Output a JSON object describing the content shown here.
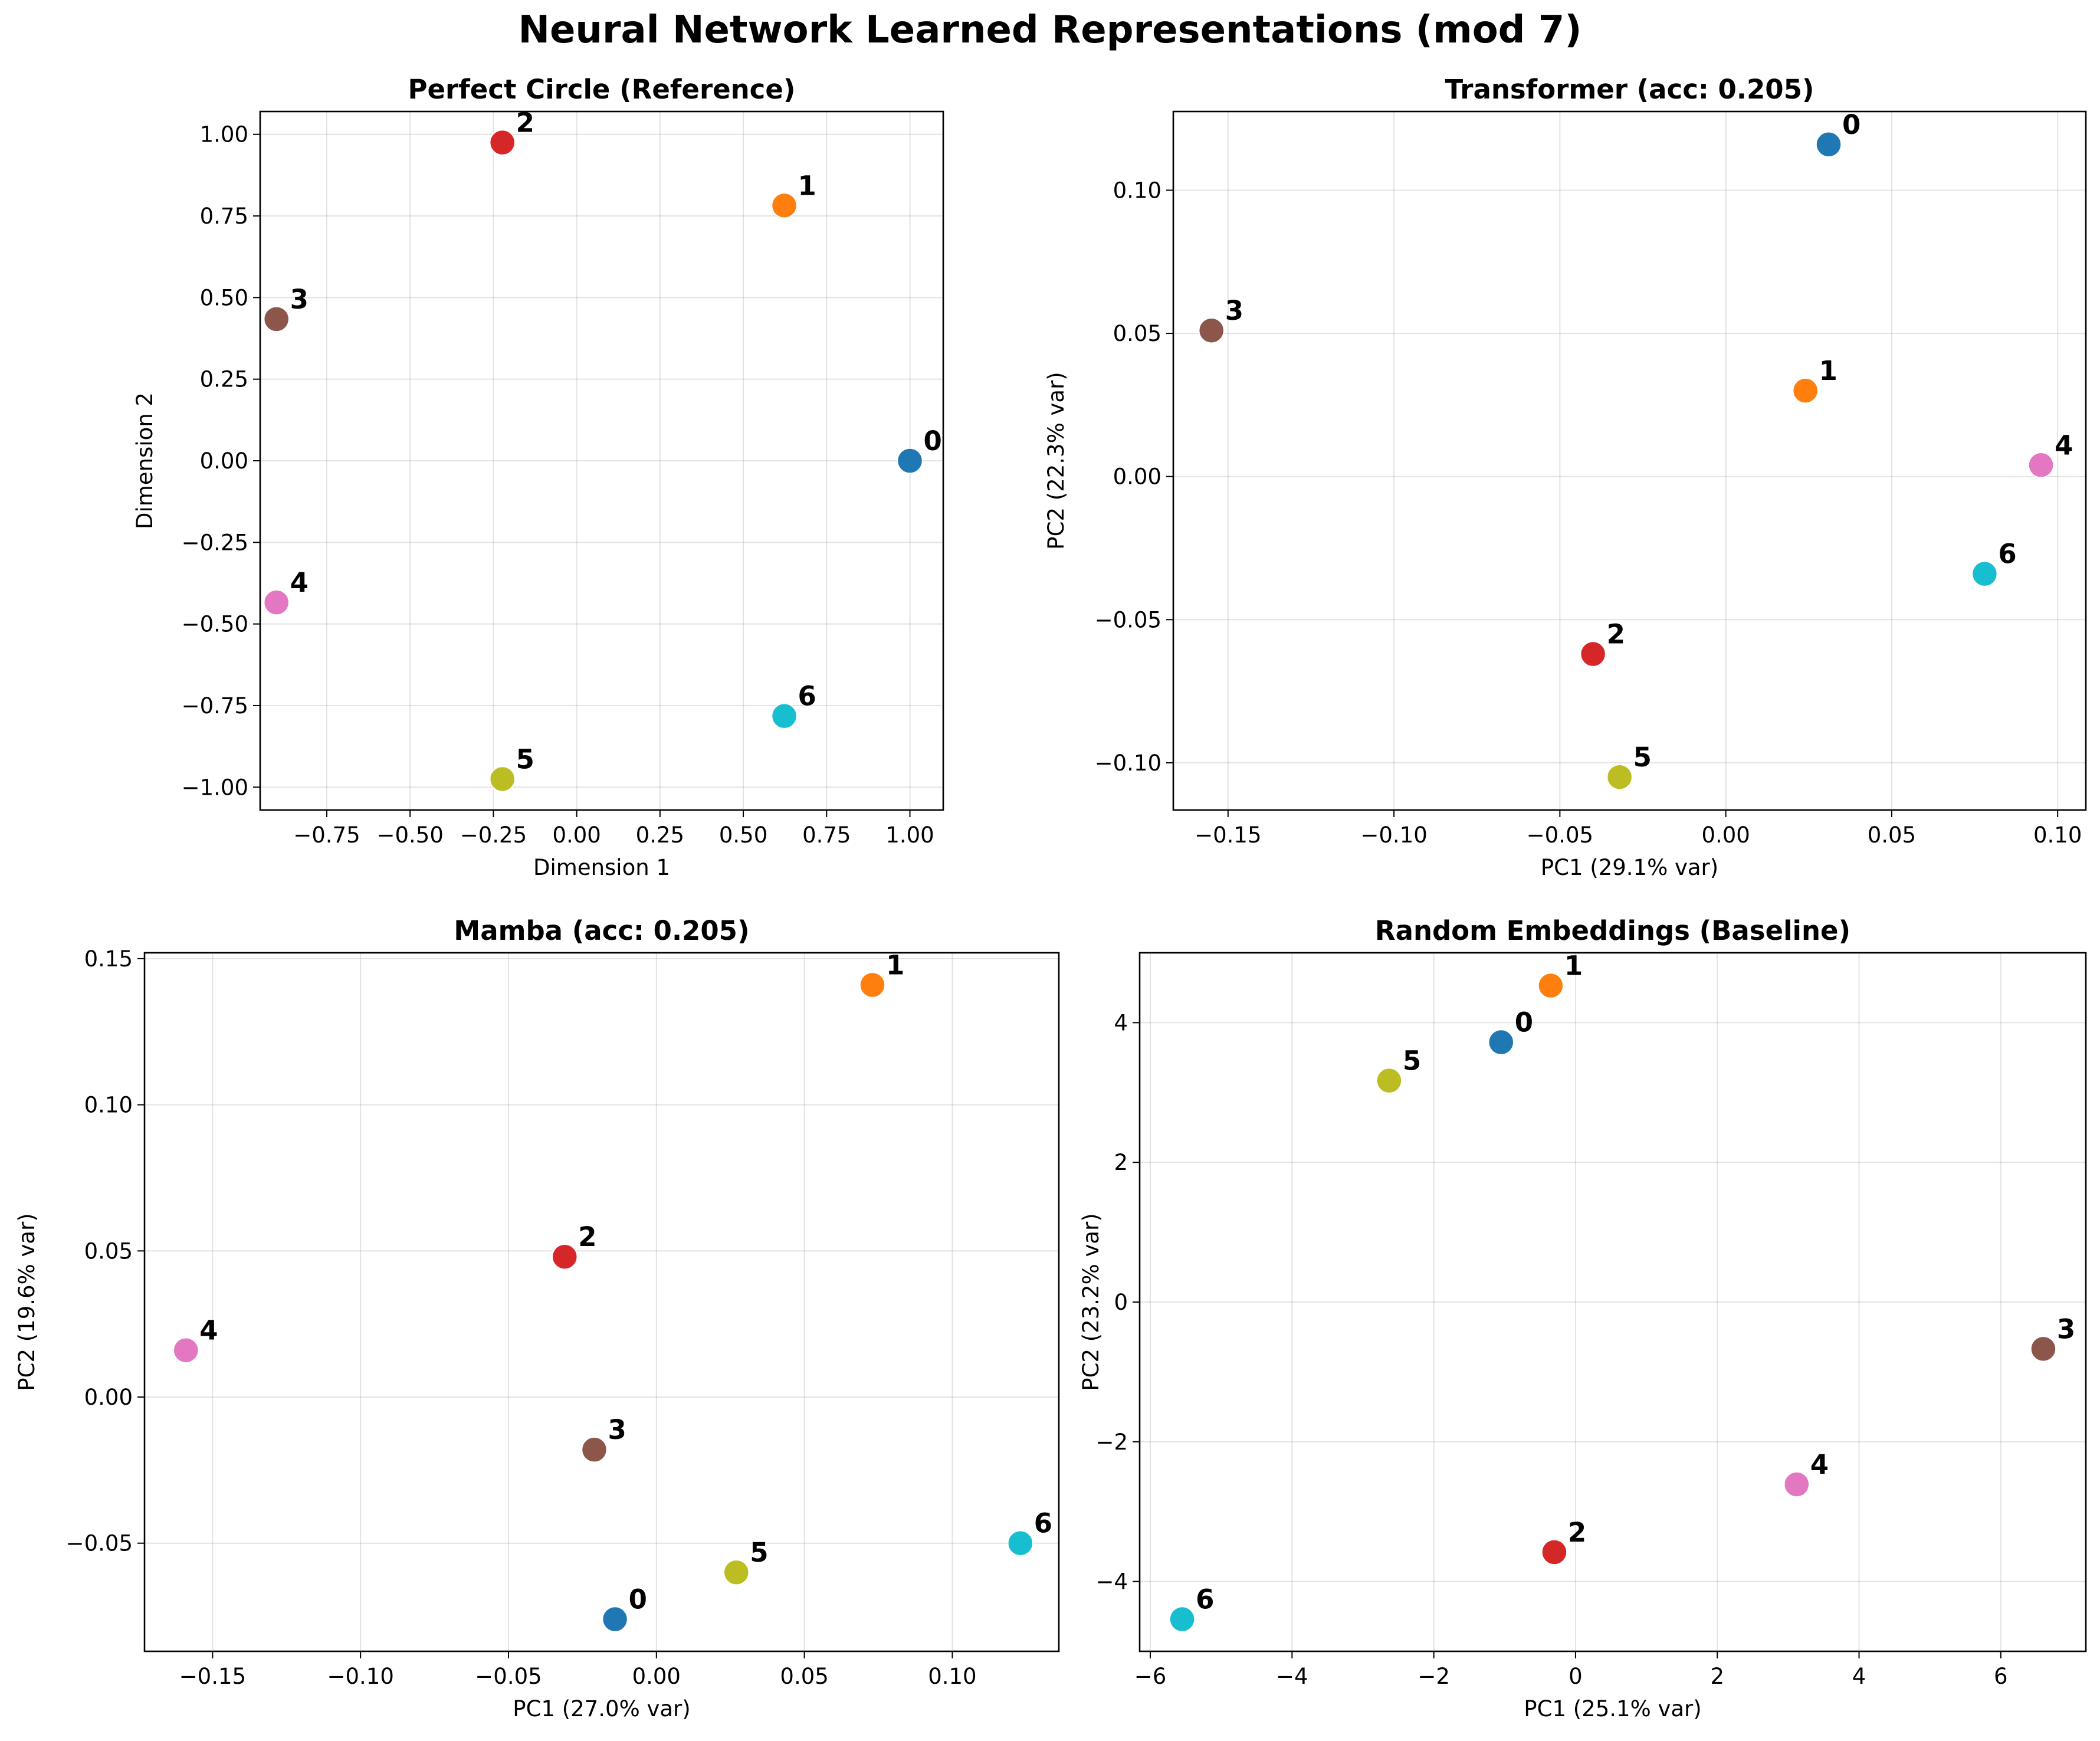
{
  "figure_title": "Neural Network Learned Representations (mod 7)",
  "colors": {
    "0": "#1f77b4",
    "1": "#ff7f0e",
    "2": "#d62728",
    "3": "#8c564b",
    "4": "#e377c2",
    "5": "#bcbd22",
    "6": "#17becf"
  },
  "chart_data": [
    {
      "type": "scatter",
      "title": "Perfect Circle (Reference)",
      "xlabel": "Dimension 1",
      "ylabel": "Dimension 2",
      "xlim": [
        -0.95,
        1.1
      ],
      "ylim": [
        -1.07,
        1.07
      ],
      "xticks": [
        -0.75,
        -0.5,
        -0.25,
        0.0,
        0.25,
        0.5,
        0.75,
        1.0
      ],
      "xtick_labels": [
        "−0.75",
        "−0.50",
        "−0.25",
        "0.00",
        "0.25",
        "0.50",
        "0.75",
        "1.00"
      ],
      "yticks": [
        -1.0,
        -0.75,
        -0.5,
        -0.25,
        0.0,
        0.25,
        0.5,
        0.75,
        1.0
      ],
      "ytick_labels": [
        "−1.00",
        "−0.75",
        "−0.50",
        "−0.25",
        "0.00",
        "0.25",
        "0.50",
        "0.75",
        "1.00"
      ],
      "grid": true,
      "points": [
        {
          "label": "0",
          "x": 1.0,
          "y": 0.0
        },
        {
          "label": "1",
          "x": 0.623,
          "y": 0.782
        },
        {
          "label": "2",
          "x": -0.223,
          "y": 0.975
        },
        {
          "label": "3",
          "x": -0.901,
          "y": 0.434
        },
        {
          "label": "4",
          "x": -0.901,
          "y": -0.434
        },
        {
          "label": "5",
          "x": -0.223,
          "y": -0.975
        },
        {
          "label": "6",
          "x": 0.623,
          "y": -0.782
        }
      ]
    },
    {
      "type": "scatter",
      "title": "Transformer (acc: 0.205)",
      "xlabel": "PC1 (29.1% var)",
      "ylabel": "PC2 (22.3% var)",
      "xlim": [
        -0.1665,
        0.1085
      ],
      "ylim": [
        -0.1165,
        0.1275
      ],
      "xticks": [
        -0.15,
        -0.1,
        -0.05,
        0.0,
        0.05,
        0.1
      ],
      "xtick_labels": [
        "−0.15",
        "−0.10",
        "−0.05",
        "0.00",
        "0.05",
        "0.10"
      ],
      "yticks": [
        -0.1,
        -0.05,
        0.0,
        0.05,
        0.1
      ],
      "ytick_labels": [
        "−0.10",
        "−0.05",
        "0.00",
        "0.05",
        "0.10"
      ],
      "grid": true,
      "points": [
        {
          "label": "0",
          "x": 0.031,
          "y": 0.116
        },
        {
          "label": "1",
          "x": 0.024,
          "y": 0.03
        },
        {
          "label": "2",
          "x": -0.04,
          "y": -0.062
        },
        {
          "label": "3",
          "x": -0.155,
          "y": 0.051
        },
        {
          "label": "4",
          "x": 0.095,
          "y": 0.004
        },
        {
          "label": "5",
          "x": -0.032,
          "y": -0.105
        },
        {
          "label": "6",
          "x": 0.078,
          "y": -0.034
        }
      ]
    },
    {
      "type": "scatter",
      "title": "Mamba (acc: 0.205)",
      "xlabel": "PC1 (27.0% var)",
      "ylabel": "PC2 (19.6% var)",
      "xlim": [
        -0.173,
        0.136
      ],
      "ylim": [
        -0.087,
        0.152
      ],
      "xticks": [
        -0.15,
        -0.1,
        -0.05,
        0.0,
        0.05,
        0.1
      ],
      "xtick_labels": [
        "−0.15",
        "−0.10",
        "−0.05",
        "0.00",
        "0.05",
        "0.10"
      ],
      "yticks": [
        -0.05,
        0.0,
        0.05,
        0.1,
        0.15
      ],
      "ytick_labels": [
        "−0.05",
        "0.00",
        "0.05",
        "0.10",
        "0.15"
      ],
      "grid": true,
      "points": [
        {
          "label": "0",
          "x": -0.014,
          "y": -0.076
        },
        {
          "label": "1",
          "x": 0.073,
          "y": 0.141
        },
        {
          "label": "2",
          "x": -0.031,
          "y": 0.048
        },
        {
          "label": "3",
          "x": -0.021,
          "y": -0.018
        },
        {
          "label": "4",
          "x": -0.159,
          "y": 0.016
        },
        {
          "label": "5",
          "x": 0.027,
          "y": -0.06
        },
        {
          "label": "6",
          "x": 0.123,
          "y": -0.05
        }
      ]
    },
    {
      "type": "scatter",
      "title": "Random Embeddings (Baseline)",
      "xlabel": "PC1 (25.1% var)",
      "ylabel": "PC2 (23.2% var)",
      "xlim": [
        -6.15,
        7.2
      ],
      "ylim": [
        -5.0,
        5.0
      ],
      "xticks": [
        -6,
        -4,
        -2,
        0,
        2,
        4,
        6
      ],
      "xtick_labels": [
        "−6",
        "−4",
        "−2",
        "0",
        "2",
        "4",
        "6"
      ],
      "yticks": [
        -4,
        -2,
        0,
        2,
        4
      ],
      "ytick_labels": [
        "−4",
        "−2",
        "0",
        "2",
        "4"
      ],
      "grid": true,
      "points": [
        {
          "label": "0",
          "x": -1.05,
          "y": 3.72
        },
        {
          "label": "1",
          "x": -0.35,
          "y": 4.53
        },
        {
          "label": "2",
          "x": -0.3,
          "y": -3.58
        },
        {
          "label": "3",
          "x": 6.6,
          "y": -0.67
        },
        {
          "label": "4",
          "x": 3.12,
          "y": -2.61
        },
        {
          "label": "5",
          "x": -2.63,
          "y": 3.17
        },
        {
          "label": "6",
          "x": -5.55,
          "y": -4.54
        }
      ]
    }
  ]
}
